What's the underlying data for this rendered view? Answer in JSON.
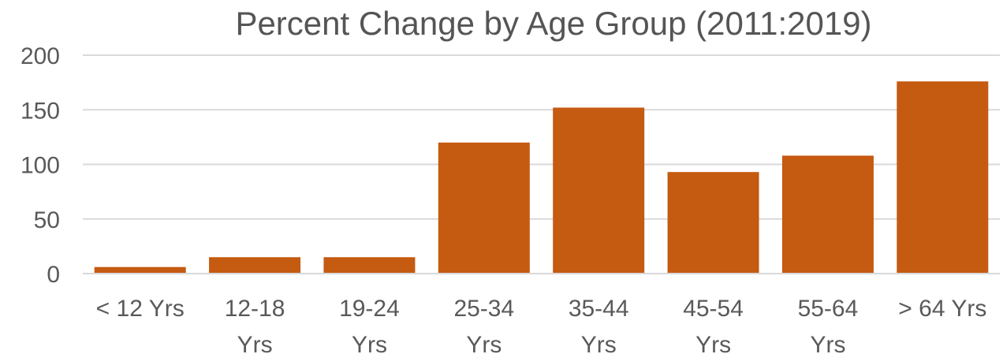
{
  "chart_data": {
    "type": "bar",
    "title": "Percent Change by Age Group (2011:2019)",
    "categories": [
      [
        "< 12 Yrs"
      ],
      [
        "12-18",
        "Yrs"
      ],
      [
        "19-24",
        "Yrs"
      ],
      [
        "25-34",
        "Yrs"
      ],
      [
        "35-44",
        "Yrs"
      ],
      [
        "45-54",
        "Yrs"
      ],
      [
        "55-64",
        "Yrs"
      ],
      [
        "> 64 Yrs"
      ]
    ],
    "values": [
      6,
      15,
      15,
      120,
      152,
      93,
      108,
      176
    ],
    "ylim": [
      0,
      200
    ],
    "yticks": [
      0,
      50,
      100,
      150,
      200
    ],
    "xlabel": "",
    "ylabel": "",
    "grid": true,
    "legend": "none",
    "colors": {
      "bar": "#C55A11",
      "grid": "#D9D9D9",
      "text": "#595959"
    }
  }
}
